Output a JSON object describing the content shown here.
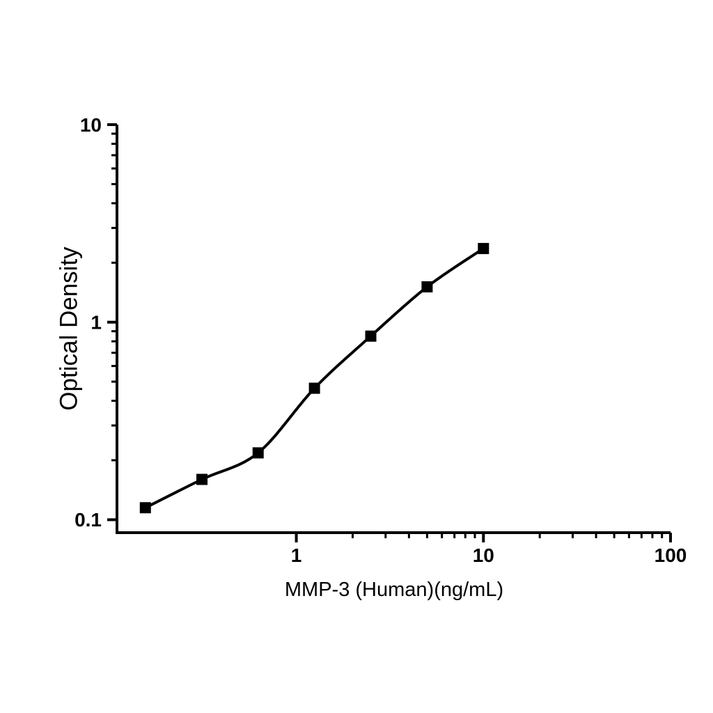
{
  "figure": {
    "background_color": "#ffffff",
    "foreground_color": "#000000"
  },
  "chart_data": {
    "type": "scatter",
    "subtype": "elisa-standard-curve",
    "title": "",
    "xlabel": "MMP-3 (Human)(ng/mL)",
    "ylabel": "Optical Density",
    "x_scale": "log",
    "y_scale": "log",
    "x_range": [
      0.11,
      100
    ],
    "y_range": [
      0.086,
      10
    ],
    "grid": false,
    "legend": false,
    "marker": "filled-square",
    "line": "smooth-fit-curve-through-points",
    "x": [
      0.156,
      0.313,
      0.625,
      1.25,
      2.5,
      5,
      10
    ],
    "y": [
      0.115,
      0.16,
      0.218,
      0.463,
      0.85,
      1.51,
      2.36
    ],
    "x_ticks": {
      "major_values": [
        1,
        10,
        100
      ],
      "major_labels": [
        "1",
        "10",
        "100"
      ],
      "minor_values": [
        2,
        3,
        4,
        5,
        6,
        7,
        8,
        9,
        20,
        30,
        40,
        50,
        60,
        70,
        80,
        90
      ]
    },
    "y_ticks": {
      "major_values": [
        10,
        1,
        0.1
      ],
      "major_labels": [
        "10",
        "1",
        "0.1"
      ],
      "minor_values": [
        0.2,
        0.3,
        0.4,
        0.5,
        0.6,
        0.7,
        0.8,
        0.9,
        2,
        3,
        4,
        5,
        6,
        7,
        8,
        9
      ]
    }
  }
}
